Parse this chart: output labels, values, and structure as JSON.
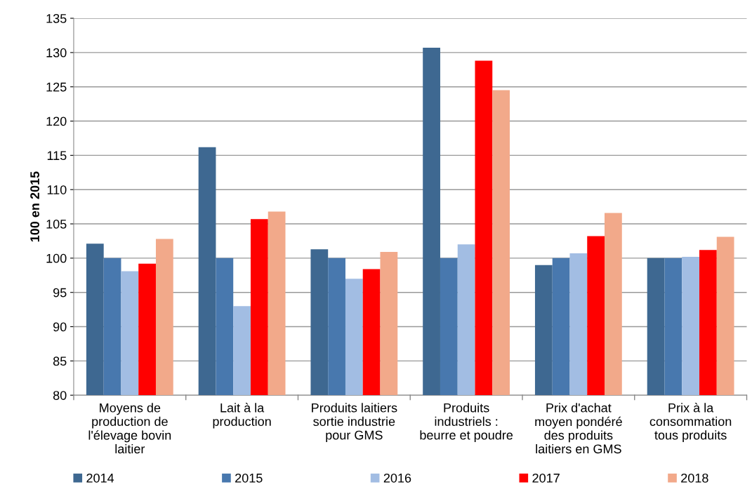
{
  "chart_data": {
    "type": "bar",
    "ylabel": "100 en 2015",
    "categories": [
      "Moyens de\nproduction de\nl'élevage bovin\nlaitier",
      "Lait à la\nproduction",
      "Produits laitiers\nsortie industrie\npour GMS",
      "Produits\nindustriels :\nbeurre et poudre",
      "Prix d'achat\nmoyen pondéré\ndes produits\nlaitiers en GMS",
      "Prix à la\nconsommation\ntous produits"
    ],
    "series": [
      {
        "name": "2014",
        "color": "#3e6891",
        "values": [
          102.1,
          116.2,
          101.3,
          130.7,
          99.0,
          100.0
        ]
      },
      {
        "name": "2015",
        "color": "#4878ae",
        "values": [
          100.0,
          100.0,
          100.0,
          100.0,
          100.0,
          100.0
        ]
      },
      {
        "name": "2016",
        "color": "#a2bde3",
        "values": [
          98.1,
          93.0,
          97.0,
          102.0,
          100.7,
          100.2
        ]
      },
      {
        "name": "2017",
        "color": "#ff0000",
        "values": [
          99.2,
          105.7,
          98.4,
          128.8,
          103.2,
          101.2
        ]
      },
      {
        "name": "2018",
        "color": "#f2a98a",
        "values": [
          102.8,
          106.8,
          100.9,
          124.5,
          106.6,
          103.1
        ]
      }
    ],
    "ylim": [
      80,
      135
    ],
    "yticks": [
      80,
      85,
      90,
      95,
      100,
      105,
      110,
      115,
      120,
      125,
      130,
      135
    ],
    "grid": "y",
    "legend": "bottom"
  }
}
